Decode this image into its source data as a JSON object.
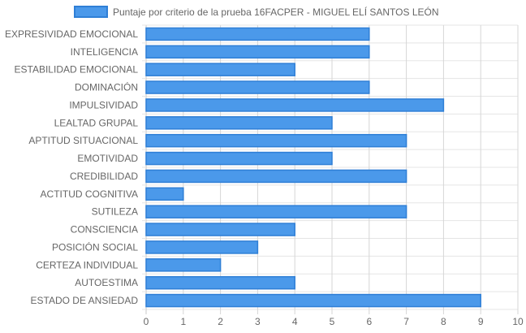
{
  "chart_data": {
    "type": "bar",
    "orientation": "horizontal",
    "categories": [
      "EXPRESIVIDAD EMOCIONAL",
      "INTELIGENCIA",
      "ESTABILIDAD EMOCIONAL",
      "DOMINACIÓN",
      "IMPULSIVIDAD",
      "LEALTAD GRUPAL",
      "APTITUD SITUACIONAL",
      "EMOTIVIDAD",
      "CREDIBILIDAD",
      "ACTITUD COGNITIVA",
      "SUTILEZA",
      "CONSCIENCIA",
      "POSICIÓN SOCIAL",
      "CERTEZA INDIVIDUAL",
      "AUTOESTIMA",
      "ESTADO DE ANSIEDAD"
    ],
    "series": [
      {
        "name": "Puntaje por criterio de la prueba 16FACPER - MIGUEL ELÍ SANTOS LEÓN",
        "values": [
          6,
          6,
          4,
          6,
          8,
          5,
          7,
          5,
          7,
          1,
          7,
          4,
          3,
          2,
          4,
          9
        ]
      }
    ],
    "xlim": [
      0,
      10
    ],
    "x_ticks": [
      "0",
      "1",
      "2",
      "3",
      "4",
      "5",
      "6",
      "7",
      "8",
      "9",
      "10"
    ],
    "grid": true,
    "legend_position": "top"
  },
  "colors": {
    "bar_fill": "#4b99ea",
    "bar_stroke": "#2f7fd6",
    "grid": "#e5e5e5",
    "grid_vertical": "#d6d6d6",
    "text": "#666666"
  }
}
